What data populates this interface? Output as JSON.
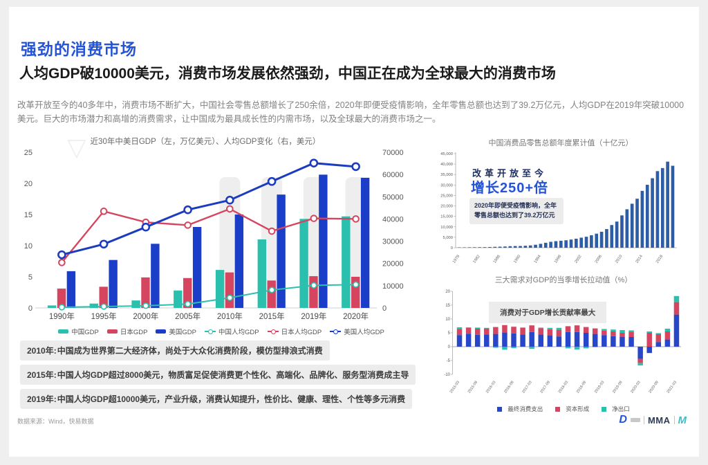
{
  "page": {
    "title": "强劲的消费市场",
    "subtitle": "人均GDP破10000美元，消费市场发展依然强劲，中国正在成为全球最大的消费市场",
    "paragraph": "改革开放至今的40多年中，消费市场不断扩大，中国社会零售总额增长了250余倍，2020年即便受疫情影响，全年零售总额也达到了39.2万亿元，人均GDP在2019年突破10000美元。巨大的市场潜力和高增的消费需求，让中国成为最具成长性的内需市场，以及全球最大的消费市场之一。"
  },
  "colors": {
    "accent_blue": "#2553d6",
    "navy_line": "#1c3cc0",
    "bar_blue": "#1b3ec8",
    "teal": "#2bbfae",
    "crimson": "#d5455f",
    "steel_blue": "#2e5da6",
    "note_bg": "#ececec",
    "body_text": "#828282"
  },
  "chart_data": [
    {
      "id": "gdp-combo",
      "type": "bar+line",
      "title": "近30年中美日GDP（左，万亿美元）、人均GDP变化（右，美元）",
      "categories": [
        "1990年",
        "1995年",
        "2000年",
        "2005年",
        "2010年",
        "2015年",
        "2019年",
        "2020年"
      ],
      "left_axis": {
        "ticks": [
          0,
          5,
          10,
          15,
          20,
          25
        ],
        "max": 25
      },
      "right_axis": {
        "ticks": [
          0,
          10000,
          20000,
          30000,
          40000,
          50000,
          60000,
          70000
        ],
        "max": 70000
      },
      "bar_series": [
        {
          "name": "中国GDP",
          "color": "#2bbfae",
          "values": [
            0.4,
            0.7,
            1.2,
            2.8,
            6.1,
            11.0,
            14.3,
            14.7
          ]
        },
        {
          "name": "日本GDP",
          "color": "#d5455f",
          "values": [
            3.1,
            3.4,
            4.9,
            4.8,
            5.7,
            4.4,
            5.1,
            5.0
          ]
        },
        {
          "name": "美国GDP",
          "color": "#1b3ec8",
          "values": [
            5.9,
            7.7,
            10.3,
            13.0,
            15.0,
            18.2,
            21.4,
            20.9
          ]
        }
      ],
      "line_series": [
        {
          "name": "中国人均GDP",
          "color": "#2bbfae",
          "values": [
            320,
            610,
            960,
            1750,
            4550,
            8070,
            10140,
            10500
          ]
        },
        {
          "name": "日本人均GDP",
          "color": "#d5455f",
          "values": [
            20400,
            43450,
            38530,
            37220,
            44510,
            34520,
            40250,
            40000
          ]
        },
        {
          "name": "美国人均GDP",
          "color": "#1c3cc0",
          "values": [
            23900,
            28700,
            36330,
            44110,
            48470,
            56860,
            65120,
            63540
          ]
        }
      ]
    },
    {
      "id": "retail-total",
      "type": "bar",
      "title": "中国消费品零售总额年度累计值（十亿元）",
      "start_year": 1978,
      "values": [
        156,
        180,
        214,
        235,
        257,
        285,
        337,
        430,
        495,
        582,
        744,
        810,
        831,
        945,
        1100,
        1425,
        1862,
        2362,
        2830,
        3125,
        3338,
        3564,
        3911,
        4306,
        4814,
        5252,
        5950,
        6718,
        7641,
        8921,
        10849,
        12505,
        15455,
        18392,
        21031,
        23438,
        27190,
        30093,
        33232,
        36626,
        38099,
        41165,
        39198
      ],
      "x_tick_labels": [
        "1978",
        "1982",
        "1986",
        "1990",
        "1994",
        "1998",
        "2002",
        "2006",
        "2010",
        "2014",
        "2018"
      ],
      "y_ticks": [
        0,
        5000,
        10000,
        15000,
        20000,
        25000,
        30000,
        35000,
        40000,
        45000
      ],
      "ylim": [
        0,
        45000
      ],
      "bar_color": "#2e5da6",
      "annotations": {
        "headline": "改革开放至今",
        "headline2": "增长250+倍",
        "box": "2020年即便受疫情影响，全年零售总额也达到了39.2万亿元"
      }
    },
    {
      "id": "gdp-pull",
      "type": "stacked-bar",
      "title": "三大需求对GDP的当季增长拉动值（%）",
      "categories": [
        "2015-03",
        "2015-06",
        "2015-09",
        "2015-12",
        "2016-03",
        "2016-06",
        "2016-09",
        "2016-12",
        "2017-03",
        "2017-06",
        "2017-09",
        "2017-12",
        "2018-03",
        "2018-06",
        "2018-09",
        "2018-12",
        "2019-03",
        "2019-06",
        "2019-09",
        "2019-12",
        "2020-03",
        "2020-06",
        "2020-09",
        "2020-12",
        "2021-03"
      ],
      "x_tick_labels": [
        "2015-03",
        "2015-09",
        "2016-03",
        "2016-09",
        "2017-03",
        "2017-09",
        "2018-03",
        "2018-09",
        "2019-03",
        "2019-09",
        "2020-03",
        "2020-09",
        "2021-03"
      ],
      "y_ticks": [
        20,
        15,
        10,
        5,
        0,
        -5,
        -10
      ],
      "ylim": [
        -10,
        20
      ],
      "series": [
        {
          "name": "最终消费支出",
          "color": "#2846c8",
          "values": [
            4.2,
            4.7,
            4.3,
            4.4,
            4.6,
            5.1,
            4.8,
            4.4,
            5.3,
            4.4,
            4.1,
            3.7,
            5.3,
            5.3,
            5.0,
            4.6,
            4.2,
            3.8,
            3.6,
            3.5,
            -4.4,
            -2.3,
            1.7,
            2.6,
            11.6
          ]
        },
        {
          "name": "资本形成",
          "color": "#d5455f",
          "values": [
            2.2,
            2.1,
            2.2,
            2.2,
            2.5,
            2.7,
            2.4,
            2.5,
            2.4,
            2.3,
            2.2,
            2.4,
            2.1,
            2.4,
            2.1,
            2.0,
            1.6,
            1.7,
            1.4,
            1.9,
            -1.5,
            5.0,
            2.8,
            2.9,
            4.5
          ]
        },
        {
          "name": "净出口",
          "color": "#2bbfae",
          "values": [
            0.6,
            0.2,
            0.4,
            0.2,
            -0.4,
            -1.1,
            -0.5,
            -0.1,
            -0.8,
            0.2,
            0.5,
            0.7,
            -0.6,
            -1.0,
            -0.6,
            -0.2,
            0.6,
            0.7,
            1.0,
            0.5,
            -0.9,
            0.5,
            0.4,
            1.0,
            2.2
          ]
        }
      ],
      "annotation": "消费对于GDP增长贡献率最大"
    }
  ],
  "timeline_notes": [
    {
      "year": "2010年:",
      "text": "中国成为世界第二大经济体，尚处于大众化消费阶段，模仿型排浪式消费"
    },
    {
      "year": "2015年:",
      "text": "中国人均GDP超过8000美元，物质富足促使消费更个性化、高端化、品牌化、服务型消费成主导"
    },
    {
      "year": "2019年:",
      "text": "中国人均GDP超10000美元，产业升级，消费认知提升，性价比、健康、理性、个性等多元消费"
    }
  ],
  "footer": {
    "source": "数据来源：Wind，快易数据",
    "logos": [
      "D",
      "MMA",
      "M"
    ]
  }
}
